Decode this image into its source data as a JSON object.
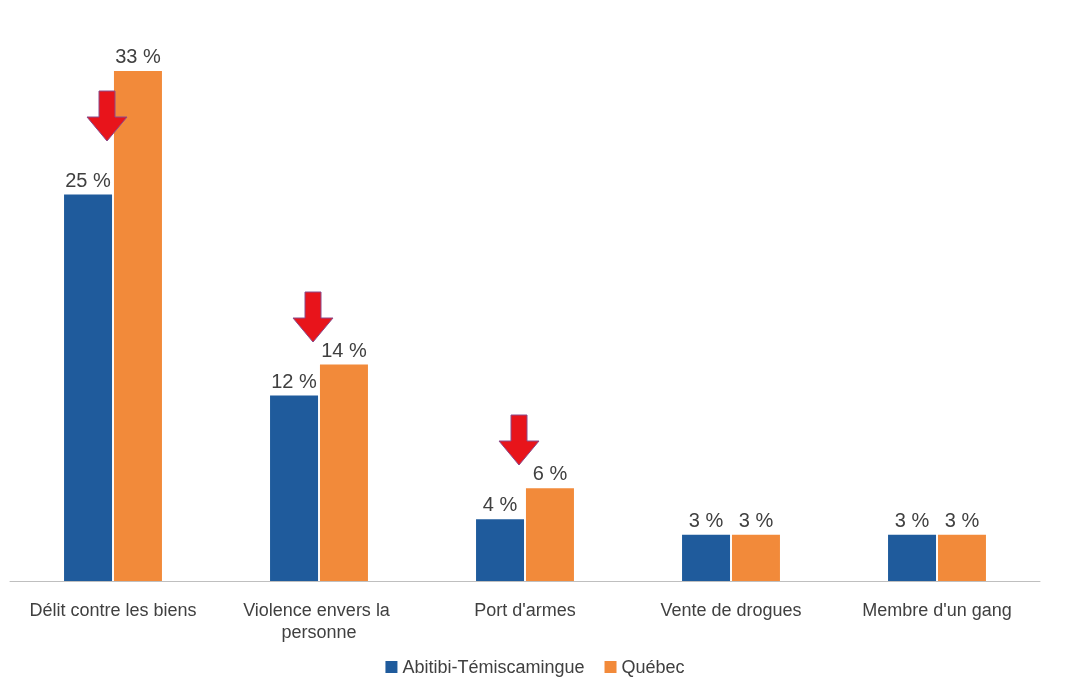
{
  "chart_data": {
    "type": "bar",
    "categories": [
      "Délit contre les biens",
      "Violence envers la personne",
      "Port d'armes",
      "Vente de drogues",
      "Membre d'un gang"
    ],
    "series": [
      {
        "name": "Abitibi-Témiscamingue",
        "color": "#1f5b9c",
        "values": [
          25,
          12,
          4,
          3,
          3
        ],
        "value_labels": [
          "25 %",
          "12 %",
          "4 %",
          "3 %",
          "3 %"
        ]
      },
      {
        "name": "Québec",
        "color": "#f28a3a",
        "values": [
          33,
          14,
          6,
          3,
          3
        ],
        "value_labels": [
          "33 %",
          "14 %",
          "6 %",
          "3 %",
          "3 %"
        ]
      }
    ],
    "legend": "bottom",
    "grid": false
  }
}
